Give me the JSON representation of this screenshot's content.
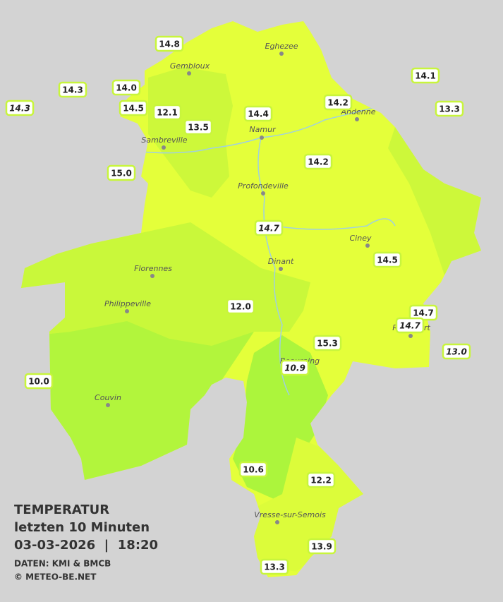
{
  "header": {
    "title": "TEMPERATUR",
    "subtitle": "letzten 10 Minuten",
    "timestamp": "03-03-2026  |  18:20",
    "source": "DATEN: KMI & BMCB",
    "copyright": "© METEO-BE.NET"
  },
  "cities": [
    "Eghezee",
    "Gembloux",
    "Andenne",
    "Namur",
    "Sambreville",
    "Profondeville",
    "Ciney",
    "Dinant",
    "Florennes",
    "Philippeville",
    "Rochefort",
    "Beauraing",
    "Couvin",
    "Vresse-sur-Semois"
  ],
  "stations": [
    {
      "label": "14.8",
      "italic": false
    },
    {
      "label": "14.3",
      "italic": false
    },
    {
      "label": "14.0",
      "italic": false
    },
    {
      "label": "14.3",
      "italic": true
    },
    {
      "label": "14.5",
      "italic": false
    },
    {
      "label": "12.1",
      "italic": false
    },
    {
      "label": "13.5",
      "italic": false
    },
    {
      "label": "14.4",
      "italic": false
    },
    {
      "label": "14.2",
      "italic": false
    },
    {
      "label": "14.1",
      "italic": false
    },
    {
      "label": "13.3",
      "italic": false
    },
    {
      "label": "15.0",
      "italic": false
    },
    {
      "label": "14.2",
      "italic": false
    },
    {
      "label": "14.7",
      "italic": true
    },
    {
      "label": "14.5",
      "italic": false
    },
    {
      "label": "12.0",
      "italic": false
    },
    {
      "label": "14.7",
      "italic": false
    },
    {
      "label": "14.7",
      "italic": true
    },
    {
      "label": "15.3",
      "italic": false
    },
    {
      "label": "13.0",
      "italic": true
    },
    {
      "label": "10.9",
      "italic": true
    },
    {
      "label": "10.0",
      "italic": false
    },
    {
      "label": "10.6",
      "italic": false
    },
    {
      "label": "12.2",
      "italic": false
    },
    {
      "label": "13.9",
      "italic": false
    },
    {
      "label": "13.3",
      "italic": false
    }
  ]
}
